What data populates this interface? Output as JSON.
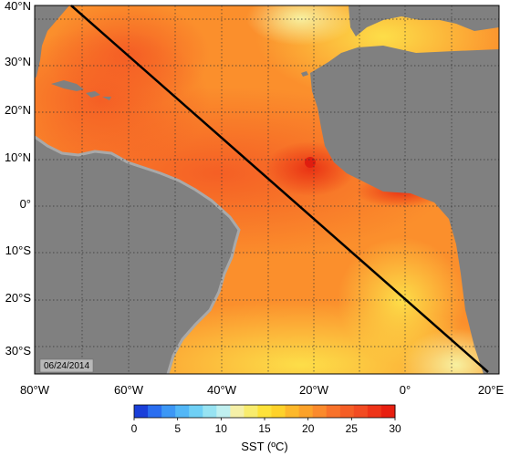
{
  "map": {
    "date_stamp": "06/24/2014",
    "lat_ticks": [
      "40°N",
      "30°N",
      "20°N",
      "10°N",
      "0°",
      "10°S",
      "20°S",
      "30°S"
    ],
    "lon_ticks": [
      "80°W",
      "60°W",
      "40°W",
      "20°W",
      "0°",
      "20°E"
    ],
    "colors": {
      "land": "#808080",
      "coastline_shelf": "#a9a9a9",
      "transect": "#000000",
      "grid": "#333333"
    }
  },
  "colorbar": {
    "title": "SST (ºC)",
    "tick_values": [
      "0",
      "5",
      "10",
      "15",
      "20",
      "25",
      "30"
    ],
    "colors": [
      "#1a3fd9",
      "#2a6ef0",
      "#3c97f5",
      "#52b7f7",
      "#6fd0f5",
      "#97e3f2",
      "#c0f0f0",
      "#f5f0a8",
      "#f8ec6e",
      "#fde23a",
      "#fed22a",
      "#fdb82a",
      "#fca22a",
      "#fb8a2c",
      "#f8722a",
      "#f55e26",
      "#f24b22",
      "#ee3418",
      "#e81f10"
    ]
  }
}
